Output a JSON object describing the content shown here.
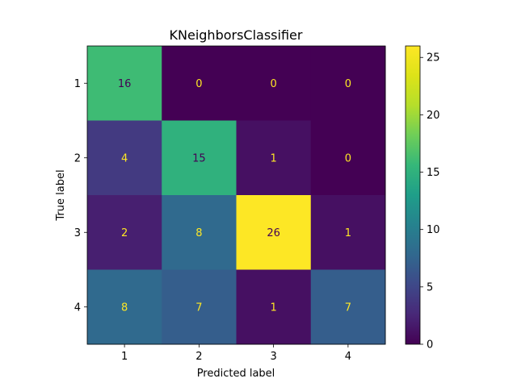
{
  "chart_data": {
    "type": "heatmap",
    "title": "KNeighborsClassifier",
    "xlabel": "Predicted label",
    "ylabel": "True label",
    "x_categories": [
      "1",
      "2",
      "3",
      "4"
    ],
    "y_categories": [
      "1",
      "2",
      "3",
      "4"
    ],
    "matrix": [
      [
        16,
        0,
        0,
        0
      ],
      [
        4,
        15,
        1,
        0
      ],
      [
        2,
        8,
        26,
        1
      ],
      [
        8,
        7,
        1,
        7
      ]
    ],
    "colormap": "viridis",
    "value_range": [
      0,
      26
    ],
    "colorbar_ticks": [
      0,
      5,
      10,
      15,
      20,
      25
    ],
    "text_color_dark": "#440154",
    "text_color_light": "#fde725"
  }
}
